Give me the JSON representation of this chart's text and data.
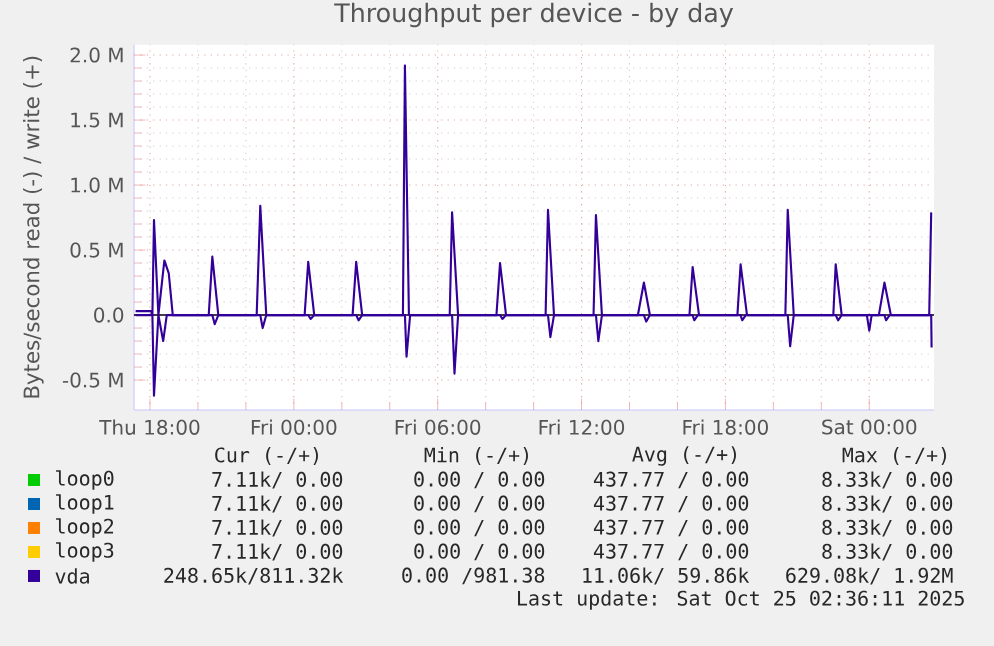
{
  "chart_data": {
    "type": "line",
    "title": "Throughput per device - by day",
    "ylabel": "Bytes/second read (-) / write (+)",
    "xlim": [
      "2025-10-23T17:20",
      "2025-10-25T02:42"
    ],
    "ylim": [
      -0.73,
      2.08
    ],
    "xticks": [
      {
        "value": "2025-10-23T18:00",
        "label": "Thu 18:00"
      },
      {
        "value": "2025-10-24T00:00",
        "label": "Fri 00:00"
      },
      {
        "value": "2025-10-24T06:00",
        "label": "Fri 06:00"
      },
      {
        "value": "2025-10-24T12:00",
        "label": "Fri 12:00"
      },
      {
        "value": "2025-10-24T18:00",
        "label": "Fri 18:00"
      },
      {
        "value": "2025-10-25T00:00",
        "label": "Sat 00:00"
      }
    ],
    "yticks": [
      {
        "value": -0.5,
        "label": "-0.5 M"
      },
      {
        "value": 0,
        "label": "0.0"
      },
      {
        "value": 0.5,
        "label": "0.5 M"
      },
      {
        "value": 1,
        "label": "1.0 M"
      },
      {
        "value": 1.5,
        "label": "1.5 M"
      },
      {
        "value": 2,
        "label": "2.0 M"
      }
    ],
    "grid": true,
    "legend": "bottom",
    "ref_lines": [
      {
        "axis": "y",
        "value": 0,
        "color": "#000000"
      }
    ],
    "series": [
      {
        "name": "loop0",
        "color": "#00cc00"
      },
      {
        "name": "loop1",
        "color": "#0066b3"
      },
      {
        "name": "loop2",
        "color": "#ff8000"
      },
      {
        "name": "loop3",
        "color": "#ffcc00"
      },
      {
        "name": "vda",
        "color": "#330099",
        "x": [
          "2025-10-23T17:24",
          "2025-10-23T18:03",
          "2025-10-23T18:06",
          "2025-10-23T18:10",
          "2025-10-23T18:21",
          "2025-10-23T18:36",
          "2025-10-23T18:47",
          "2025-10-23T18:57",
          "2025-10-23T20:27",
          "2025-10-23T20:36",
          "2025-10-23T20:51",
          "2025-10-23T22:27",
          "2025-10-23T22:36",
          "2025-10-23T22:51",
          "2025-10-24T00:27",
          "2025-10-24T00:36",
          "2025-10-24T00:51",
          "2025-10-24T02:27",
          "2025-10-24T02:36",
          "2025-10-24T02:51",
          "2025-10-24T04:33",
          "2025-10-24T04:38",
          "2025-10-24T04:48",
          "2025-10-24T06:30",
          "2025-10-24T06:36",
          "2025-10-24T06:51",
          "2025-10-24T08:27",
          "2025-10-24T08:36",
          "2025-10-24T08:51",
          "2025-10-24T10:30",
          "2025-10-24T10:36",
          "2025-10-24T10:51",
          "2025-10-24T12:30",
          "2025-10-24T12:36",
          "2025-10-24T12:51",
          "2025-10-24T14:21",
          "2025-10-24T14:36",
          "2025-10-24T14:51",
          "2025-10-24T16:30",
          "2025-10-24T16:38",
          "2025-10-24T16:54",
          "2025-10-24T18:30",
          "2025-10-24T18:38",
          "2025-10-24T18:54",
          "2025-10-24T20:30",
          "2025-10-24T20:36",
          "2025-10-24T20:51",
          "2025-10-24T22:30",
          "2025-10-24T22:36",
          "2025-10-24T22:51",
          "2025-10-25T00:24",
          "2025-10-25T00:38",
          "2025-10-25T00:54",
          "2025-10-25T02:30",
          "2025-10-25T02:35"
        ],
        "values": [
          0.03,
          0.03,
          0,
          0.73,
          0,
          0.42,
          0.32,
          0,
          0,
          0.45,
          0,
          0,
          0.84,
          0,
          0,
          0.41,
          0,
          0,
          0.41,
          0,
          0,
          1.92,
          0,
          0,
          0.79,
          0,
          0,
          0.4,
          0,
          0,
          0.81,
          0,
          0,
          0.77,
          0,
          0,
          0.25,
          0,
          0,
          0.37,
          0,
          0,
          0.39,
          0,
          0,
          0.81,
          0,
          0,
          0.39,
          0,
          0,
          0.25,
          0,
          0,
          0.79
        ]
      },
      {
        "color": "#330099",
        "x": [
          "2025-10-23T17:24",
          "2025-10-23T18:06",
          "2025-10-23T18:10",
          "2025-10-23T18:21",
          "2025-10-23T18:33",
          "2025-10-23T18:42",
          "2025-10-23T20:36",
          "2025-10-23T20:42",
          "2025-10-23T20:51",
          "2025-10-23T22:36",
          "2025-10-23T22:42",
          "2025-10-23T22:51",
          "2025-10-24T00:36",
          "2025-10-24T00:42",
          "2025-10-24T00:51",
          "2025-10-24T02:36",
          "2025-10-24T02:42",
          "2025-10-24T02:51",
          "2025-10-24T04:38",
          "2025-10-24T04:42",
          "2025-10-24T04:51",
          "2025-10-24T06:36",
          "2025-10-24T06:42",
          "2025-10-24T06:51",
          "2025-10-24T08:36",
          "2025-10-24T08:42",
          "2025-10-24T08:51",
          "2025-10-24T10:36",
          "2025-10-24T10:42",
          "2025-10-24T10:51",
          "2025-10-24T12:36",
          "2025-10-24T12:42",
          "2025-10-24T12:51",
          "2025-10-24T14:36",
          "2025-10-24T14:42",
          "2025-10-24T14:51",
          "2025-10-24T16:38",
          "2025-10-24T16:42",
          "2025-10-24T16:51",
          "2025-10-24T18:38",
          "2025-10-24T18:42",
          "2025-10-24T18:51",
          "2025-10-24T20:36",
          "2025-10-24T20:42",
          "2025-10-24T20:51",
          "2025-10-24T22:36",
          "2025-10-24T22:42",
          "2025-10-24T22:51",
          "2025-10-24T23:54",
          "2025-10-25T00:00",
          "2025-10-25T00:06",
          "2025-10-25T00:38",
          "2025-10-25T00:42",
          "2025-10-25T00:51",
          "2025-10-25T02:35",
          "2025-10-25T02:36"
        ],
        "values": [
          0,
          0,
          -0.62,
          0,
          -0.2,
          0,
          0,
          -0.07,
          0,
          0,
          -0.1,
          0,
          0,
          -0.03,
          0,
          0,
          -0.04,
          0,
          0,
          -0.32,
          0,
          0,
          -0.45,
          0,
          0,
          -0.03,
          0,
          0,
          -0.17,
          0,
          0,
          -0.2,
          0,
          0,
          -0.05,
          0,
          0,
          -0.04,
          0,
          0,
          -0.04,
          0,
          0,
          -0.24,
          0,
          0,
          -0.04,
          0,
          0,
          -0.12,
          0,
          0,
          -0.04,
          0,
          0,
          -0.25
        ]
      }
    ],
    "annotations": [
      "Cur (-/+)",
      "Min (-/+)",
      "Avg (-/+)",
      "Max (-/+)",
      "7.11k/  0.00",
      "0.00 /  0.00",
      "437.77 /  0.00",
      "8.33k/  0.00",
      "7.11k/  0.00",
      "0.00 /  0.00",
      "437.77 /  0.00",
      "8.33k/  0.00",
      "7.11k/  0.00",
      "0.00 /  0.00",
      "437.77 /  0.00",
      "8.33k/  0.00",
      "7.11k/  0.00",
      "0.00 /  0.00",
      "437.77 /  0.00",
      "8.33k/  0.00",
      "248.65k/811.32k",
      "0.00 /981.38",
      "11.06k/ 59.86k",
      "629.08k/  1.92M",
      "Last update: Sat Oct 25 02:36:11 2025"
    ]
  }
}
